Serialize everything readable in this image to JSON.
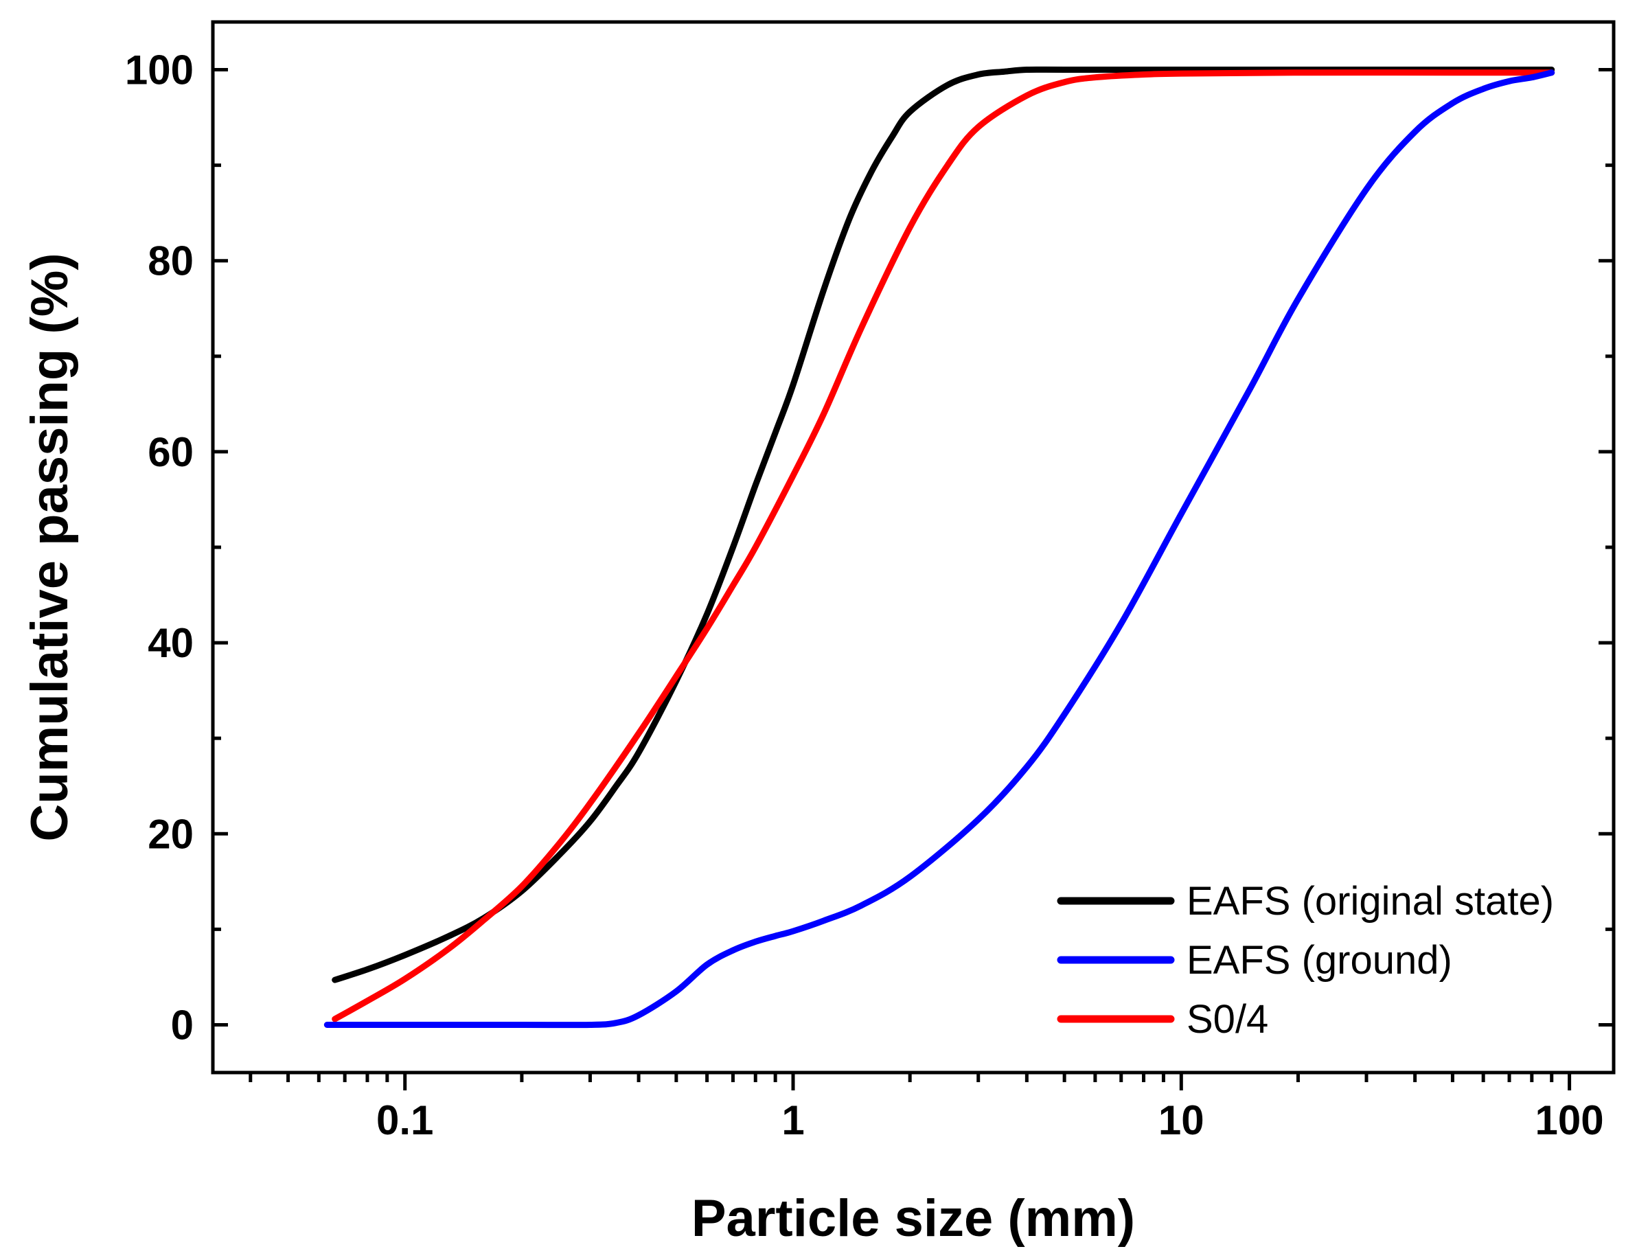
{
  "chart_data": {
    "type": "line",
    "title": "",
    "xlabel": "Particle size (mm)",
    "ylabel": "Cumulative passing (%)",
    "xscale": "log",
    "xlim": [
      0.032,
      130
    ],
    "ylim": [
      -5,
      105
    ],
    "x_ticks": [
      0.1,
      1,
      10,
      100
    ],
    "x_tick_labels": [
      "0.1",
      "1",
      "10",
      "100"
    ],
    "y_ticks": [
      0,
      20,
      40,
      60,
      80,
      100
    ],
    "y_tick_labels": [
      "0",
      "20",
      "40",
      "60",
      "80",
      "100"
    ],
    "grid": false,
    "legend_position": "bottom-right",
    "series": [
      {
        "name": "EAFS (original state)",
        "color": "#000000",
        "x": [
          0.066,
          0.08,
          0.1,
          0.13,
          0.16,
          0.2,
          0.25,
          0.3,
          0.35,
          0.4,
          0.5,
          0.6,
          0.7,
          0.8,
          0.9,
          1.0,
          1.2,
          1.4,
          1.6,
          1.8,
          2.0,
          2.5,
          3.0,
          3.5,
          4.0,
          5,
          10,
          20,
          50,
          90
        ],
        "y": [
          4.7,
          5.8,
          7.3,
          9.3,
          11.2,
          14.0,
          17.8,
          21.3,
          25.0,
          28.5,
          36.0,
          43.0,
          50.0,
          56.5,
          62.0,
          67.0,
          77.0,
          84.5,
          89.5,
          93.0,
          95.6,
          98.4,
          99.5,
          99.8,
          100,
          100,
          100,
          100,
          100,
          100
        ]
      },
      {
        "name": "EAFS (ground)",
        "color": "#0000ff",
        "x": [
          0.063,
          0.1,
          0.2,
          0.3,
          0.35,
          0.4,
          0.5,
          0.6,
          0.7,
          0.8,
          0.9,
          1.0,
          1.2,
          1.5,
          2.0,
          3.0,
          4.0,
          5.0,
          7.0,
          10,
          15,
          20,
          30,
          40,
          50,
          60,
          70,
          80,
          90
        ],
        "y": [
          0,
          0,
          0,
          0,
          0.2,
          1.0,
          3.5,
          6.3,
          7.8,
          8.7,
          9.3,
          9.8,
          10.9,
          12.5,
          15.5,
          21.5,
          27.0,
          32.5,
          42.0,
          53.5,
          66.5,
          76.0,
          87.5,
          93.5,
          96.5,
          98.0,
          98.8,
          99.2,
          99.7
        ]
      },
      {
        "name": "S0/4",
        "color": "#ff0000",
        "x": [
          0.066,
          0.08,
          0.1,
          0.13,
          0.16,
          0.2,
          0.25,
          0.3,
          0.4,
          0.5,
          0.6,
          0.7,
          0.8,
          1.0,
          1.2,
          1.5,
          2.0,
          2.5,
          3.0,
          4.0,
          5.0,
          6.0,
          8.0,
          10,
          20,
          50,
          90
        ],
        "y": [
          0.6,
          2.5,
          4.8,
          8.0,
          11.0,
          14.5,
          19.0,
          23.2,
          30.5,
          36.5,
          41.5,
          46.0,
          50.0,
          57.5,
          64.0,
          73.0,
          83.5,
          90.0,
          94.0,
          97.3,
          98.7,
          99.2,
          99.5,
          99.6,
          99.7,
          99.7,
          99.7
        ]
      }
    ]
  }
}
